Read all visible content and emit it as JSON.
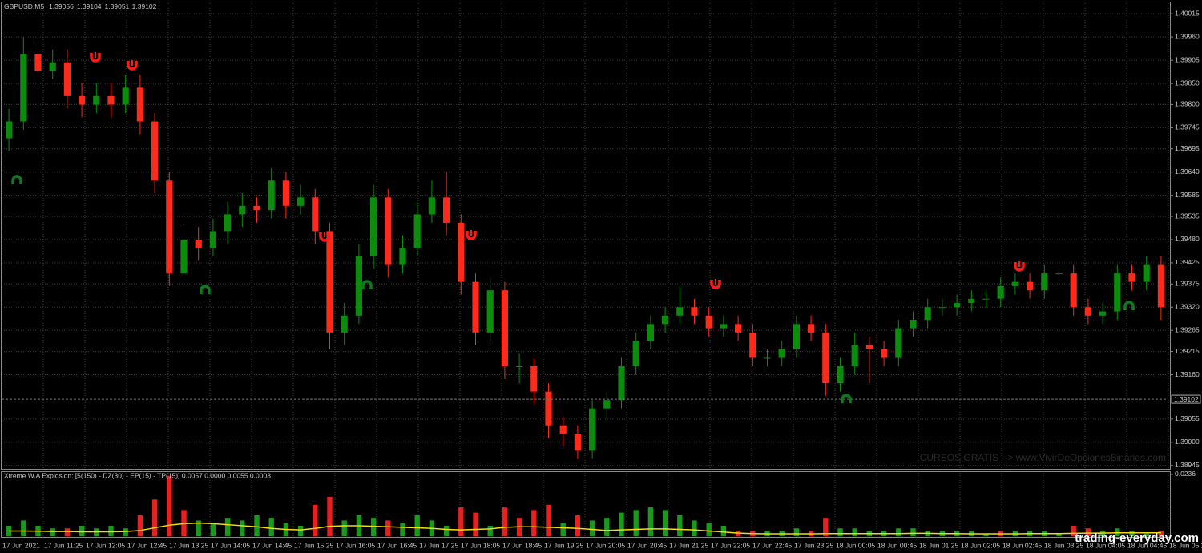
{
  "header": {
    "symbol": "GBPUSD,M5",
    "ohlc": [
      1.39056,
      1.39104,
      1.39051,
      1.39102
    ]
  },
  "chart_data": [
    {
      "type": "candlestick",
      "open": [
        1.3972,
        1.3976,
        1.3992,
        1.3988,
        1.399,
        1.3982,
        1.398,
        1.3982,
        1.398,
        1.3984,
        1.3976,
        1.3962,
        1.394,
        1.3948,
        1.3946,
        1.395,
        1.3954,
        1.3956,
        1.3955,
        1.3962,
        1.3956,
        1.3958,
        1.395,
        1.3926,
        1.393,
        1.3944,
        1.3958,
        1.3942,
        1.3946,
        1.3954,
        1.3958,
        1.3952,
        1.3938,
        1.3926,
        1.3936,
        1.3918,
        1.3918,
        1.3912,
        1.3904,
        1.3902,
        1.3898,
        1.3908,
        1.391,
        1.3918,
        1.3924,
        1.3928,
        1.393,
        1.3932,
        1.393,
        1.3927,
        1.3928,
        1.3926,
        1.392,
        1.392,
        1.3922,
        1.3928,
        1.3926,
        1.3914,
        1.3918,
        1.3923,
        1.3922,
        1.392,
        1.3927,
        1.3929,
        1.3932,
        1.3932,
        1.3933,
        1.3934,
        1.3934,
        1.3937,
        1.3938,
        1.3936,
        1.394,
        1.394,
        1.3932,
        1.393,
        1.3931,
        1.394,
        1.3938,
        1.3942
      ],
      "high": [
        1.3979,
        1.3996,
        1.3995,
        1.3993,
        1.3993,
        1.3985,
        1.3985,
        1.3985,
        1.3987,
        1.3987,
        1.3978,
        1.3964,
        1.3951,
        1.3951,
        1.3953,
        1.3957,
        1.3959,
        1.3958,
        1.3965,
        1.3964,
        1.3961,
        1.396,
        1.3952,
        1.3933,
        1.3947,
        1.3961,
        1.396,
        1.3949,
        1.3957,
        1.3962,
        1.3964,
        1.3954,
        1.394,
        1.3939,
        1.3938,
        1.3921,
        1.392,
        1.3914,
        1.3906,
        1.3904,
        1.391,
        1.3912,
        1.392,
        1.3926,
        1.393,
        1.3932,
        1.3937,
        1.3934,
        1.3932,
        1.393,
        1.393,
        1.3928,
        1.3922,
        1.3924,
        1.393,
        1.393,
        1.3928,
        1.392,
        1.3926,
        1.3925,
        1.3924,
        1.3929,
        1.3931,
        1.3934,
        1.3934,
        1.3935,
        1.3936,
        1.3936,
        1.3939,
        1.394,
        1.394,
        1.3942,
        1.3942,
        1.3942,
        1.3934,
        1.3933,
        1.3942,
        1.3942,
        1.3944,
        1.3944
      ],
      "low": [
        1.3969,
        1.3974,
        1.3985,
        1.3986,
        1.3979,
        1.3977,
        1.3978,
        1.3977,
        1.3978,
        1.3973,
        1.3959,
        1.3937,
        1.3938,
        1.3943,
        1.3944,
        1.3947,
        1.3951,
        1.3952,
        1.3953,
        1.3953,
        1.3954,
        1.3947,
        1.3922,
        1.3923,
        1.3928,
        1.3941,
        1.3939,
        1.394,
        1.3944,
        1.3952,
        1.3949,
        1.3935,
        1.3923,
        1.3924,
        1.3915,
        1.3914,
        1.3909,
        1.3901,
        1.3899,
        1.3896,
        1.3896,
        1.3905,
        1.3908,
        1.3916,
        1.3922,
        1.3926,
        1.3928,
        1.3928,
        1.3925,
        1.3925,
        1.3924,
        1.3918,
        1.3918,
        1.3918,
        1.392,
        1.3924,
        1.3911,
        1.3912,
        1.3916,
        1.3914,
        1.3918,
        1.3918,
        1.3925,
        1.3927,
        1.393,
        1.393,
        1.3931,
        1.3932,
        1.3932,
        1.3935,
        1.3934,
        1.3934,
        1.3938,
        1.393,
        1.3928,
        1.3928,
        1.3929,
        1.3936,
        1.3936,
        1.3929
      ],
      "close": [
        1.3976,
        1.3992,
        1.3988,
        1.399,
        1.3982,
        1.398,
        1.3982,
        1.398,
        1.3984,
        1.3976,
        1.3962,
        1.394,
        1.3948,
        1.3946,
        1.395,
        1.3954,
        1.3956,
        1.3955,
        1.3962,
        1.3956,
        1.3958,
        1.395,
        1.3926,
        1.393,
        1.3944,
        1.3958,
        1.3942,
        1.3946,
        1.3954,
        1.3958,
        1.3952,
        1.3938,
        1.3926,
        1.3936,
        1.3918,
        1.3918,
        1.3912,
        1.3904,
        1.3902,
        1.3898,
        1.3908,
        1.391,
        1.3918,
        1.3924,
        1.3928,
        1.393,
        1.3932,
        1.393,
        1.3927,
        1.3928,
        1.3926,
        1.392,
        1.392,
        1.3922,
        1.3928,
        1.3926,
        1.3914,
        1.3918,
        1.3923,
        1.3922,
        1.392,
        1.3927,
        1.3929,
        1.3932,
        1.3932,
        1.3933,
        1.3934,
        1.3934,
        1.3937,
        1.3938,
        1.3936,
        1.394,
        1.394,
        1.3932,
        1.393,
        1.3931,
        1.394,
        1.3938,
        1.3942,
        1.3932
      ],
      "up_color": "#0c8c0c",
      "down_color": "#ff2a1a",
      "ylim": [
        1.38937,
        1.4004
      ],
      "yticks": [
        1.40015,
        {
          "value": 1.3996,
          "label": "1.39960"
        },
        1.39905,
        {
          "value": 1.3985,
          "label": "1.39850"
        },
        {
          "value": 1.398,
          "label": "1.39800"
        },
        1.39745,
        1.39695,
        {
          "value": 1.3964,
          "label": "1.39640"
        },
        1.39585,
        1.39535,
        {
          "value": 1.3948,
          "label": "1.39480"
        },
        1.39425,
        1.39375,
        {
          "value": 1.3932,
          "label": "1.39320"
        },
        1.39265,
        1.39215,
        {
          "value": 1.3916,
          "label": "1.39160"
        },
        1.39055,
        {
          "value": 1.39,
          "label": "1.39000"
        },
        1.38945
      ],
      "grid": true
    },
    {
      "type": "bar",
      "title": "Xtreme W.A Explosion: [5(150) - DZ(30) - EP(15) - TP(15)] 0.0057 0.0000 0.0055 0.0003",
      "ylim": [
        0,
        0.0245
      ],
      "yticks": [
        0.0236
      ],
      "series": [
        {
          "color": "#1a9a1a",
          "values": [
            0.004,
            0.006,
            0.004,
            0.003,
            null,
            0.004,
            0.003,
            0.004,
            0.003,
            null,
            null,
            null,
            null,
            0.006,
            0.005,
            0.007,
            0.006,
            0.008,
            0.007,
            0.005,
            0.004,
            null,
            null,
            0.006,
            0.008,
            0.007,
            null,
            0.005,
            0.008,
            0.006,
            0.004,
            null,
            null,
            0.004,
            null,
            null,
            null,
            null,
            0.005,
            null,
            0.006,
            0.007,
            0.009,
            0.01,
            0.011,
            0.01,
            0.008,
            0.006,
            0.005,
            0.004,
            null,
            null,
            0.002,
            0.002,
            0.003,
            null,
            null,
            0.003,
            0.003,
            0.002,
            0.002,
            0.003,
            0.003,
            0.002,
            0.002,
            0.002,
            0.002,
            0.001,
            null,
            0.002,
            0.002,
            0.002,
            0.001,
            null,
            null,
            0.002,
            0.003,
            0.002,
            0.001,
            null
          ]
        },
        {
          "color": "#e82020",
          "values": [
            null,
            null,
            null,
            null,
            0.003,
            null,
            null,
            null,
            null,
            0.008,
            0.014,
            0.023,
            0.01,
            null,
            null,
            null,
            null,
            null,
            null,
            null,
            null,
            0.012,
            0.015,
            null,
            null,
            null,
            0.006,
            null,
            null,
            null,
            null,
            0.011,
            0.009,
            null,
            0.011,
            0.007,
            0.01,
            0.012,
            null,
            0.008,
            null,
            null,
            null,
            null,
            null,
            null,
            null,
            null,
            null,
            null,
            0.002,
            0.002,
            null,
            null,
            null,
            0.002,
            0.007,
            null,
            null,
            null,
            null,
            null,
            null,
            null,
            null,
            null,
            null,
            null,
            0.002,
            null,
            null,
            null,
            null,
            0.004,
            0.003,
            null,
            null,
            null,
            null,
            0.002
          ]
        },
        {
          "type": "line",
          "color": "#f0dc10",
          "values": [
            0.002,
            0.002,
            0.0019,
            0.0018,
            0.0018,
            0.0017,
            0.0017,
            0.0017,
            0.0018,
            0.0022,
            0.0032,
            0.0042,
            0.0048,
            0.005,
            0.0048,
            0.0044,
            0.004,
            0.0036,
            0.003,
            0.0026,
            0.0024,
            0.003,
            0.0038,
            0.004,
            0.004,
            0.0038,
            0.0036,
            0.0034,
            0.0032,
            0.003,
            0.0026,
            0.0024,
            0.0026,
            0.0028,
            0.0034,
            0.0036,
            0.0036,
            0.0034,
            0.0032,
            0.003,
            0.0026,
            0.0022,
            0.0024,
            0.0026,
            0.0028,
            0.0028,
            0.0026,
            0.0024,
            0.002,
            0.0016,
            0.0012,
            0.001,
            0.0009,
            0.0009,
            0.0009,
            0.0009,
            0.001,
            0.001,
            0.001,
            0.001,
            0.001,
            0.001,
            0.0011,
            0.0011,
            0.001,
            0.001,
            0.0009,
            0.0009,
            0.0009,
            0.0009,
            0.001,
            0.001,
            0.001,
            0.0011,
            0.0012,
            0.0012,
            0.0013,
            0.0013,
            0.0013,
            0.0013
          ]
        }
      ]
    }
  ],
  "time_labels": [
    "17 Jun 2021",
    "17 Jun 11:25",
    "17 Jun 12:05",
    "17 Jun 12:45",
    "17 Jun 13:25",
    "17 Jun 14:05",
    "17 Jun 14:45",
    "17 Jun 15:25",
    "17 Jun 16:05",
    "17 Jun 16:45",
    "17 Jun 17:25",
    "17 Jun 18:05",
    "17 Jun 18:45",
    "17 Jun 19:25",
    "17 Jun 20:05",
    "17 Jun 20:45",
    "17 Jun 21:25",
    "17 Jun 22:05",
    "17 Jun 22:45",
    "17 Jun 23:25",
    "18 Jun 00:05",
    "18 Jun 00:45",
    "18 Jun 01:25",
    "18 Jun 02:05",
    "18 Jun 02:45",
    "18 Jun 03:25",
    "18 Jun 04:05",
    "18 Jun 04:45",
    "18 Jun 05:25"
  ],
  "watermarks": [
    "CURSOS GRATIS --> www.VivirDeOpcionesBinarias.com",
    "trading-everyday.com"
  ]
}
